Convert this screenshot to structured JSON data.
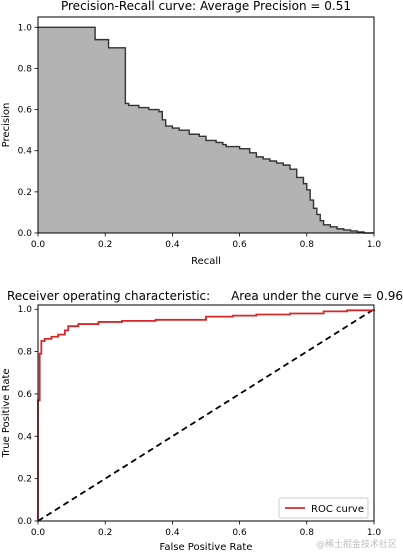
{
  "chart_data": [
    {
      "type": "area",
      "title": "Precision-Recall curve: Average Precision =      0.51",
      "xlabel": "Recall",
      "ylabel": "Precision",
      "xlim": [
        0,
        1
      ],
      "ylim": [
        0,
        1.05
      ],
      "x_ticks": [
        "0.0",
        "0.2",
        "0.4",
        "0.6",
        "0.8",
        "1.0"
      ],
      "y_ticks": [
        "0.0",
        "0.2",
        "0.4",
        "0.6",
        "0.8",
        "1.0"
      ],
      "grid": false,
      "step": "post",
      "fill_color": "#b3b3b3",
      "line_color": "#333333",
      "series": [
        {
          "recall": [
            0.0,
            0.17,
            0.17,
            0.21,
            0.21,
            0.26,
            0.26,
            0.27,
            0.3,
            0.33,
            0.36,
            0.37,
            0.38,
            0.4,
            0.42,
            0.45,
            0.48,
            0.5,
            0.53,
            0.55,
            0.56,
            0.58,
            0.6,
            0.63,
            0.65,
            0.67,
            0.69,
            0.71,
            0.73,
            0.75,
            0.77,
            0.79,
            0.8,
            0.81,
            0.82,
            0.83,
            0.84,
            0.85,
            0.87,
            0.89,
            0.91,
            0.93,
            0.95,
            0.97,
            1.0
          ],
          "precision": [
            1.0,
            1.0,
            0.94,
            0.94,
            0.9,
            0.86,
            0.63,
            0.62,
            0.61,
            0.6,
            0.59,
            0.55,
            0.52,
            0.51,
            0.5,
            0.48,
            0.47,
            0.45,
            0.44,
            0.43,
            0.42,
            0.42,
            0.41,
            0.39,
            0.37,
            0.36,
            0.35,
            0.34,
            0.33,
            0.31,
            0.27,
            0.24,
            0.21,
            0.16,
            0.12,
            0.09,
            0.06,
            0.04,
            0.03,
            0.02,
            0.015,
            0.01,
            0.005,
            0.0,
            0.0
          ]
        }
      ]
    },
    {
      "type": "line",
      "title_left": "Receiver operating characteristic:",
      "title_right": "Area under the curve = 0.96",
      "xlabel": "False Positive Rate",
      "ylabel": "True Positive Rate",
      "xlim": [
        0,
        1
      ],
      "ylim": [
        0,
        1.02
      ],
      "x_ticks": [
        "0.0",
        "0.2",
        "0.4",
        "0.6",
        "0.8",
        "1.0"
      ],
      "y_ticks": [
        "0.0",
        "0.2",
        "0.4",
        "0.6",
        "0.8",
        "1.0"
      ],
      "grid": false,
      "legend_position": "bottom-right",
      "series": [
        {
          "name": "ROC curve",
          "color": "#d62728",
          "x": [
            0.0,
            0.0,
            0.005,
            0.005,
            0.01,
            0.01,
            0.02,
            0.04,
            0.06,
            0.08,
            0.09,
            0.12,
            0.18,
            0.25,
            0.35,
            0.5,
            0.5,
            0.58,
            0.65,
            0.75,
            0.85,
            0.92,
            1.0
          ],
          "y": [
            0.0,
            0.57,
            0.7,
            0.79,
            0.82,
            0.85,
            0.86,
            0.87,
            0.88,
            0.9,
            0.92,
            0.93,
            0.94,
            0.945,
            0.95,
            0.955,
            0.965,
            0.97,
            0.975,
            0.98,
            0.99,
            0.995,
            1.0
          ]
        },
        {
          "color": "#000000",
          "dashed": true,
          "x": [
            0.0,
            1.0
          ],
          "y": [
            0.0,
            1.0
          ]
        }
      ]
    }
  ],
  "watermark": "@稀土掘金技术社区"
}
